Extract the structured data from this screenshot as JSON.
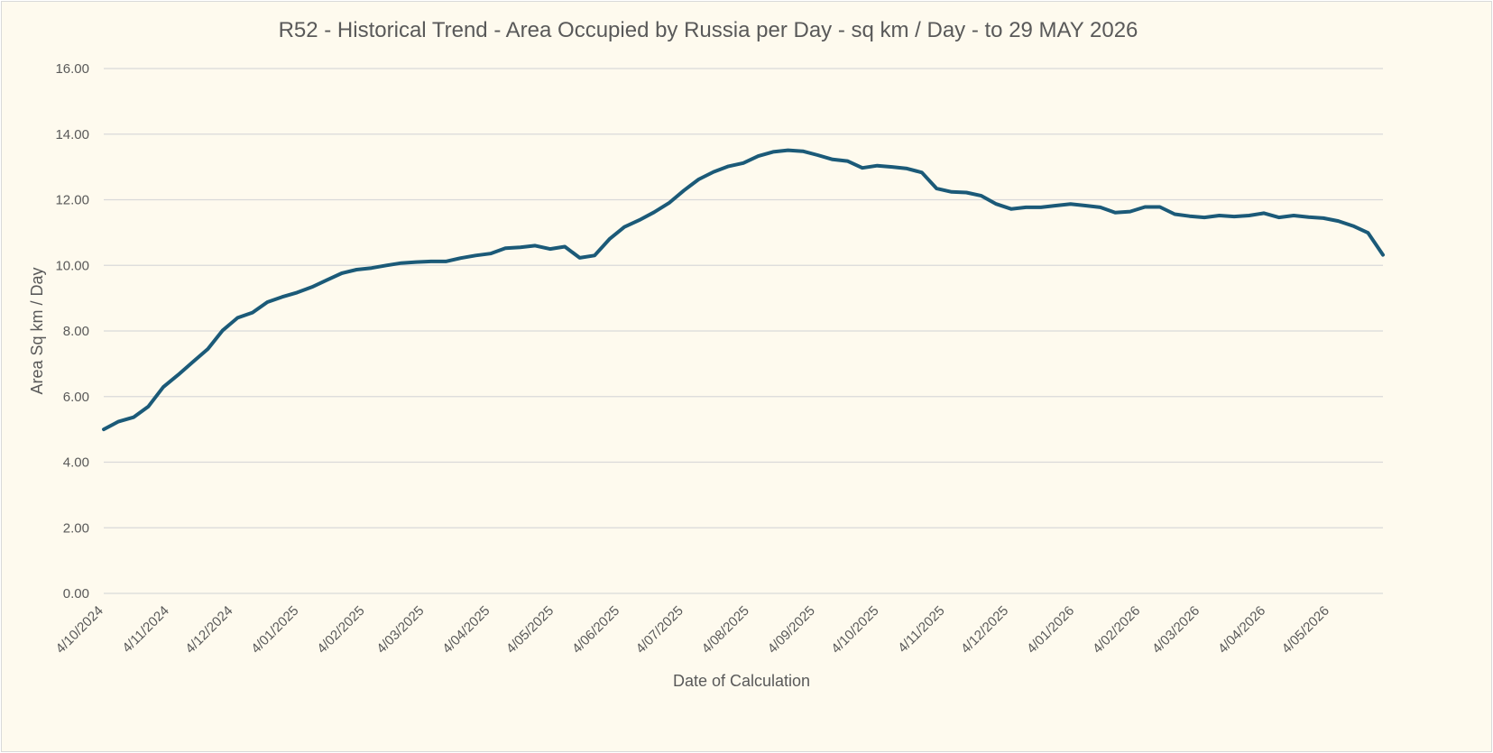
{
  "chart_data": {
    "type": "line",
    "title": "R52 - Historical Trend - Area Occupied by Russia per Day - sq km / Day - to 29 MAY 2026",
    "xlabel": "Date of Calculation",
    "ylabel": "Area Sq km / Day",
    "ylim": [
      0,
      16
    ],
    "yticks": [
      "0.00",
      "2.00",
      "4.00",
      "6.00",
      "8.00",
      "10.00",
      "12.00",
      "14.00",
      "16.00"
    ],
    "xticks": [
      "4/10/2024",
      "4/11/2024",
      "4/12/2024",
      "4/01/2025",
      "4/02/2025",
      "4/03/2025",
      "4/04/2025",
      "4/05/2025",
      "4/06/2025",
      "4/07/2025",
      "4/08/2025",
      "4/09/2025",
      "4/10/2025",
      "4/11/2025",
      "4/12/2025",
      "4/01/2026",
      "4/02/2026",
      "4/03/2026",
      "4/04/2026",
      "4/05/2026"
    ],
    "xlim": [
      "2024-10-04",
      "2026-05-29"
    ],
    "grid": true,
    "legend": "none",
    "series": [
      {
        "color": "#1b5a78",
        "points": [
          {
            "x": "2024-10-04",
            "y": 5.0
          },
          {
            "x": "2024-10-11",
            "y": 5.24
          },
          {
            "x": "2024-10-18",
            "y": 5.37
          },
          {
            "x": "2024-10-25",
            "y": 5.7
          },
          {
            "x": "2024-11-01",
            "y": 6.29
          },
          {
            "x": "2024-11-08",
            "y": 6.66
          },
          {
            "x": "2024-11-15",
            "y": 7.06
          },
          {
            "x": "2024-11-22",
            "y": 7.45
          },
          {
            "x": "2024-11-29",
            "y": 8.02
          },
          {
            "x": "2024-12-06",
            "y": 8.4
          },
          {
            "x": "2024-12-13",
            "y": 8.56
          },
          {
            "x": "2024-12-20",
            "y": 8.88
          },
          {
            "x": "2024-12-27",
            "y": 9.04
          },
          {
            "x": "2025-01-03",
            "y": 9.17
          },
          {
            "x": "2025-01-10",
            "y": 9.34
          },
          {
            "x": "2025-01-17",
            "y": 9.55
          },
          {
            "x": "2025-01-24",
            "y": 9.76
          },
          {
            "x": "2025-01-31",
            "y": 9.87
          },
          {
            "x": "2025-02-07",
            "y": 9.92
          },
          {
            "x": "2025-02-14",
            "y": 10.0
          },
          {
            "x": "2025-02-21",
            "y": 10.07
          },
          {
            "x": "2025-02-28",
            "y": 10.1
          },
          {
            "x": "2025-03-07",
            "y": 10.12
          },
          {
            "x": "2025-03-14",
            "y": 10.12
          },
          {
            "x": "2025-03-21",
            "y": 10.22
          },
          {
            "x": "2025-03-28",
            "y": 10.3
          },
          {
            "x": "2025-04-04",
            "y": 10.36
          },
          {
            "x": "2025-04-11",
            "y": 10.52
          },
          {
            "x": "2025-04-18",
            "y": 10.55
          },
          {
            "x": "2025-04-25",
            "y": 10.6
          },
          {
            "x": "2025-05-02",
            "y": 10.5
          },
          {
            "x": "2025-05-09",
            "y": 10.57
          },
          {
            "x": "2025-05-16",
            "y": 10.23
          },
          {
            "x": "2025-05-23",
            "y": 10.3
          },
          {
            "x": "2025-05-30",
            "y": 10.8
          },
          {
            "x": "2025-06-06",
            "y": 11.17
          },
          {
            "x": "2025-06-13",
            "y": 11.38
          },
          {
            "x": "2025-06-20",
            "y": 11.62
          },
          {
            "x": "2025-06-27",
            "y": 11.9
          },
          {
            "x": "2025-07-04",
            "y": 12.28
          },
          {
            "x": "2025-07-11",
            "y": 12.62
          },
          {
            "x": "2025-07-18",
            "y": 12.85
          },
          {
            "x": "2025-07-25",
            "y": 13.02
          },
          {
            "x": "2025-08-01",
            "y": 13.12
          },
          {
            "x": "2025-08-08",
            "y": 13.33
          },
          {
            "x": "2025-08-15",
            "y": 13.46
          },
          {
            "x": "2025-08-22",
            "y": 13.51
          },
          {
            "x": "2025-08-29",
            "y": 13.48
          },
          {
            "x": "2025-09-05",
            "y": 13.36
          },
          {
            "x": "2025-09-12",
            "y": 13.23
          },
          {
            "x": "2025-09-19",
            "y": 13.18
          },
          {
            "x": "2025-09-26",
            "y": 12.97
          },
          {
            "x": "2025-10-03",
            "y": 13.04
          },
          {
            "x": "2025-10-10",
            "y": 13.0
          },
          {
            "x": "2025-10-17",
            "y": 12.95
          },
          {
            "x": "2025-10-24",
            "y": 12.83
          },
          {
            "x": "2025-10-31",
            "y": 12.34
          },
          {
            "x": "2025-11-07",
            "y": 12.24
          },
          {
            "x": "2025-11-14",
            "y": 12.22
          },
          {
            "x": "2025-11-21",
            "y": 12.12
          },
          {
            "x": "2025-11-28",
            "y": 11.87
          },
          {
            "x": "2025-12-05",
            "y": 11.72
          },
          {
            "x": "2025-12-12",
            "y": 11.77
          },
          {
            "x": "2025-12-19",
            "y": 11.77
          },
          {
            "x": "2025-12-26",
            "y": 11.82
          },
          {
            "x": "2026-01-02",
            "y": 11.87
          },
          {
            "x": "2026-01-09",
            "y": 11.82
          },
          {
            "x": "2026-01-16",
            "y": 11.77
          },
          {
            "x": "2026-01-23",
            "y": 11.61
          },
          {
            "x": "2026-01-30",
            "y": 11.64
          },
          {
            "x": "2026-02-06",
            "y": 11.78
          },
          {
            "x": "2026-02-13",
            "y": 11.78
          },
          {
            "x": "2026-02-20",
            "y": 11.56
          },
          {
            "x": "2026-02-27",
            "y": 11.5
          },
          {
            "x": "2026-03-06",
            "y": 11.46
          },
          {
            "x": "2026-03-13",
            "y": 11.52
          },
          {
            "x": "2026-03-20",
            "y": 11.49
          },
          {
            "x": "2026-03-27",
            "y": 11.52
          },
          {
            "x": "2026-04-03",
            "y": 11.59
          },
          {
            "x": "2026-04-10",
            "y": 11.46
          },
          {
            "x": "2026-04-17",
            "y": 11.52
          },
          {
            "x": "2026-04-24",
            "y": 11.47
          },
          {
            "x": "2026-05-01",
            "y": 11.44
          },
          {
            "x": "2026-05-08",
            "y": 11.35
          },
          {
            "x": "2026-05-15",
            "y": 11.2
          },
          {
            "x": "2026-05-22",
            "y": 10.99
          },
          {
            "x": "2026-05-29",
            "y": 10.32
          }
        ]
      }
    ]
  }
}
